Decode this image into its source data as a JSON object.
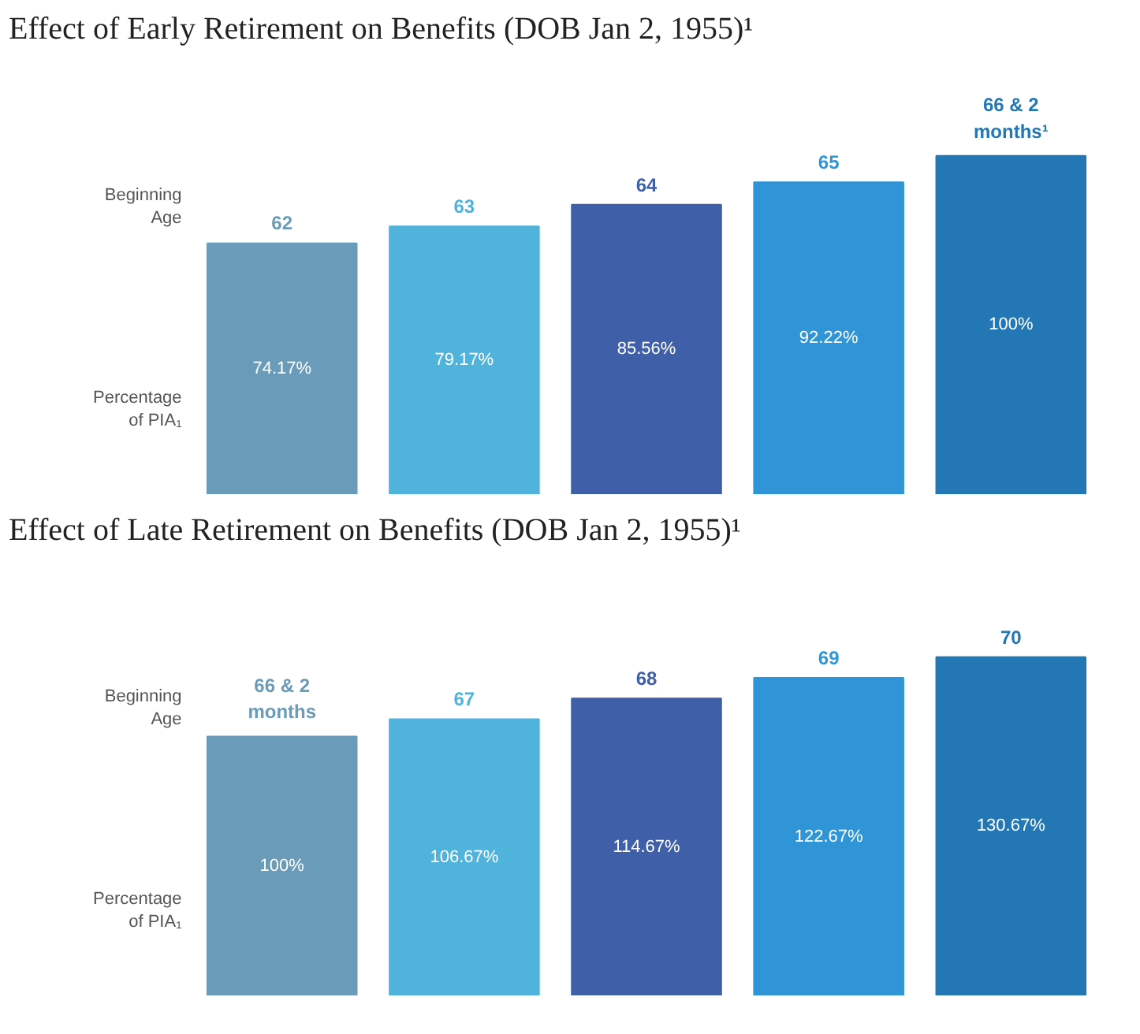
{
  "chart_data": [
    {
      "type": "bar",
      "title": "Effect of Early Retirement on Benefits (DOB Jan 2, 1955)¹",
      "categories": [
        "62",
        "63",
        "64",
        "65",
        "66 & 2\nmonths¹"
      ],
      "values": [
        74.17,
        79.17,
        85.56,
        92.22,
        100
      ],
      "value_labels": [
        "74.17%",
        "79.17%",
        "85.56%",
        "92.22%",
        "100%"
      ],
      "colors": [
        "#6a9bb8",
        "#4fb3dc",
        "#3f5fa8",
        "#2f95d6",
        "#2277b4"
      ],
      "annotations": [
        "Beginning\nAge",
        "Percentage\nof PIA₁"
      ]
    },
    {
      "type": "bar",
      "title": "Effect of Late Retirement on Benefits (DOB Jan 2, 1955)¹",
      "categories": [
        "66 & 2\nmonths",
        "67",
        "68",
        "69",
        "70"
      ],
      "values": [
        100,
        106.67,
        114.67,
        122.67,
        130.67
      ],
      "value_labels": [
        "100%",
        "106.67%",
        "114.67%",
        "122.67%",
        "130.67%"
      ],
      "colors": [
        "#6a9bb8",
        "#4fb3dc",
        "#3f5fa8",
        "#2f95d6",
        "#2277b4"
      ],
      "annotations": [
        "Beginning\nAge",
        "Percentage\nof PIA₁"
      ]
    }
  ]
}
